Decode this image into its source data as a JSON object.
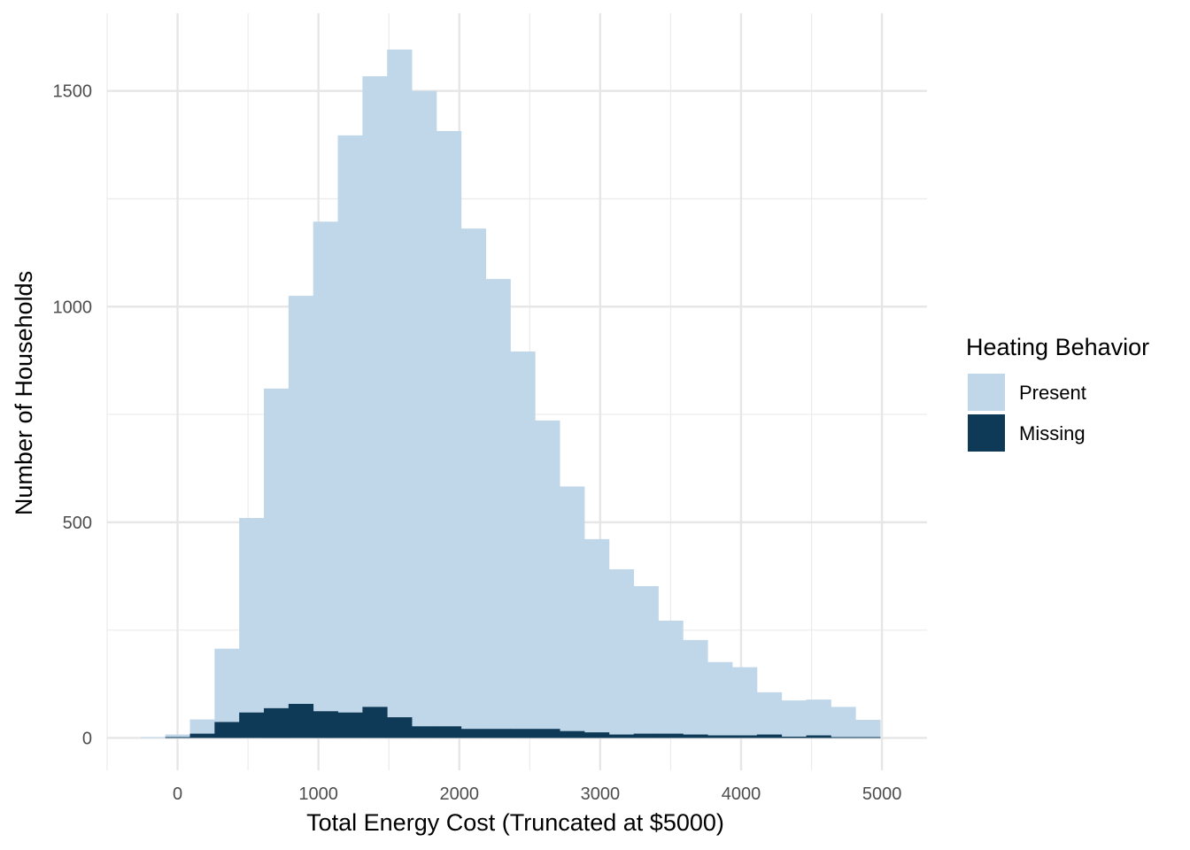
{
  "chart_data": {
    "type": "bar",
    "subtype": "histogram-overlay",
    "title": "",
    "xlabel": "Total Energy Cost (Truncated at $5000)",
    "ylabel": "Number of Households",
    "xlim": [
      -500,
      5320
    ],
    "ylim": [
      -75,
      1680
    ],
    "x_ticks": [
      0,
      1000,
      2000,
      3000,
      4000,
      5000
    ],
    "y_ticks": [
      0,
      500,
      1000,
      1500
    ],
    "x_minor_ticks": [
      -500,
      500,
      1500,
      2500,
      3500,
      4500
    ],
    "y_minor_ticks": [
      250,
      750,
      1250
    ],
    "grid": true,
    "legend_title": "Heating Behavior",
    "legend_position": "right",
    "bin_width": 175,
    "bin_centers": [
      -175,
      0,
      175,
      350,
      525,
      700,
      875,
      1050,
      1225,
      1400,
      1575,
      1750,
      1925,
      2100,
      2275,
      2450,
      2625,
      2800,
      2975,
      3150,
      3325,
      3500,
      3675,
      3850,
      4025,
      4200,
      4375,
      4550,
      4725,
      4900
    ],
    "series": [
      {
        "name": "Present",
        "color": "#c0d7ea",
        "values": [
          2,
          8,
          43,
          207,
          510,
          810,
          1025,
          1197,
          1397,
          1534,
          1596,
          1500,
          1407,
          1181,
          1064,
          896,
          736,
          583,
          461,
          391,
          352,
          272,
          227,
          176,
          164,
          106,
          87,
          89,
          72,
          42
        ]
      },
      {
        "name": "Missing",
        "color": "#0e3a57",
        "values": [
          0,
          2,
          10,
          37,
          59,
          69,
          79,
          62,
          59,
          72,
          48,
          27,
          27,
          21,
          21,
          21,
          21,
          16,
          13,
          8,
          10,
          10,
          8,
          6,
          6,
          8,
          3,
          6,
          2,
          2
        ]
      }
    ]
  }
}
